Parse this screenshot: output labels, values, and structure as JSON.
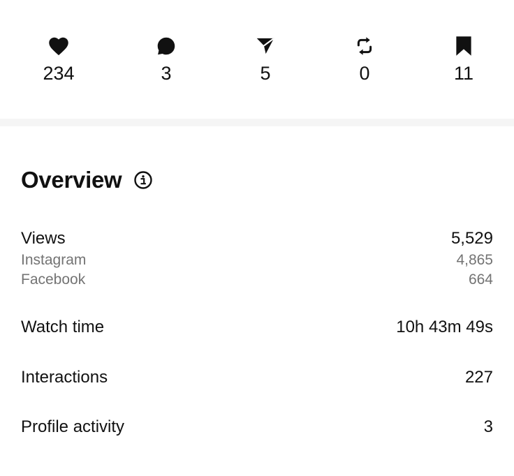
{
  "stats": [
    {
      "icon": "heart-icon",
      "count": "234"
    },
    {
      "icon": "comment-icon",
      "count": "3"
    },
    {
      "icon": "share-icon",
      "count": "5"
    },
    {
      "icon": "repost-icon",
      "count": "0"
    },
    {
      "icon": "bookmark-icon",
      "count": "11"
    }
  ],
  "overview": {
    "title": "Overview",
    "info_icon": "info-icon",
    "views": {
      "label": "Views",
      "value": "5,529",
      "breakdown": [
        {
          "label": "Instagram",
          "value": "4,865"
        },
        {
          "label": "Facebook",
          "value": "664"
        }
      ]
    },
    "watch_time": {
      "label": "Watch time",
      "value": "10h 43m 49s"
    },
    "interactions": {
      "label": "Interactions",
      "value": "227"
    },
    "profile_activity": {
      "label": "Profile activity",
      "value": "3"
    }
  },
  "colors": {
    "primary_text": "#111111",
    "secondary_text": "#737373",
    "divider": "#f5f5f5",
    "background": "#ffffff"
  }
}
